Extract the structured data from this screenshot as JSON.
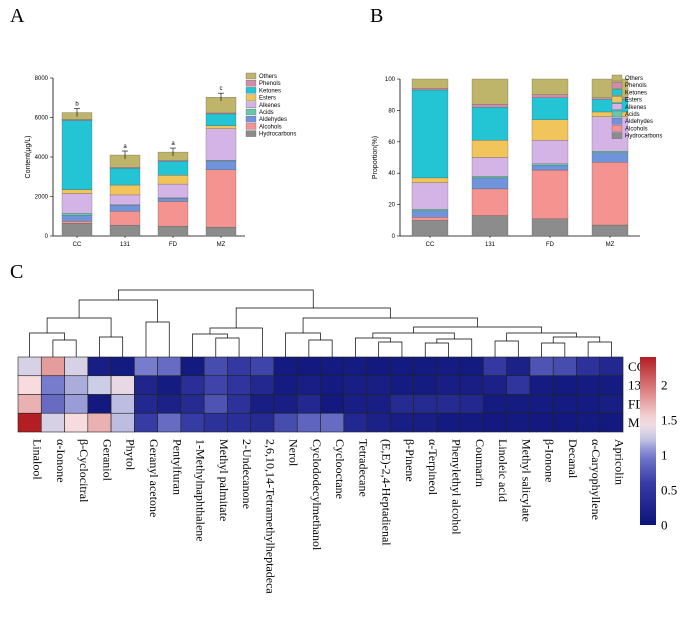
{
  "panels": {
    "a": "A",
    "b": "B",
    "c": "C"
  },
  "colors": {
    "Hydrocarbons": "#8c8c8c",
    "Alcohols": "#f4938f",
    "Aldehydes": "#6f94dc",
    "Acids": "#67c8a8",
    "Alkenes": "#d4b4e6",
    "Esters": "#f2c55c",
    "Ketones": "#23c4d4",
    "Phenols": "#d08ca8",
    "Others": "#bfb56a"
  },
  "chart_data": [
    {
      "id": "A",
      "type": "bar",
      "stacked": true,
      "ylabel": "Content(μg/L)",
      "xlabel": "",
      "ylim": [
        0,
        8000
      ],
      "yticks": [
        0,
        2000,
        4000,
        6000,
        8000
      ],
      "categories": [
        "CC",
        "131",
        "FD",
        "MZ"
      ],
      "legend_placement": "top-right",
      "significance": [
        "b",
        "a",
        "a",
        "c"
      ],
      "series": [
        {
          "name": "Hydrocarbons",
          "values": [
            650,
            550,
            500,
            450
          ]
        },
        {
          "name": "Alcohols",
          "values": [
            100,
            700,
            1250,
            2900
          ]
        },
        {
          "name": "Aldehydes",
          "values": [
            300,
            300,
            150,
            450
          ]
        },
        {
          "name": "Acids",
          "values": [
            100,
            30,
            30,
            30
          ]
        },
        {
          "name": "Alkenes",
          "values": [
            1000,
            500,
            700,
            1600
          ]
        },
        {
          "name": "Esters",
          "values": [
            200,
            500,
            450,
            150
          ]
        },
        {
          "name": "Ketones",
          "values": [
            3500,
            850,
            700,
            600
          ]
        },
        {
          "name": "Phenols",
          "values": [
            50,
            50,
            50,
            50
          ]
        },
        {
          "name": "Others",
          "values": [
            350,
            620,
            420,
            800
          ]
        }
      ]
    },
    {
      "id": "B",
      "type": "bar",
      "stacked": true,
      "ylabel": "Proportion(%)",
      "xlabel": "",
      "ylim": [
        0,
        100
      ],
      "yticks": [
        0,
        20,
        40,
        60,
        80,
        100
      ],
      "categories": [
        "CC",
        "131",
        "FD",
        "MZ"
      ],
      "legend_placement": "top-right",
      "series": [
        {
          "name": "Hydrocarbons",
          "values": [
            10,
            13,
            11,
            7
          ]
        },
        {
          "name": "Alcohols",
          "values": [
            2,
            17,
            31,
            40
          ]
        },
        {
          "name": "Aldehydes",
          "values": [
            4,
            7,
            3,
            6
          ]
        },
        {
          "name": "Acids",
          "values": [
            1,
            1,
            1,
            1
          ]
        },
        {
          "name": "Alkenes",
          "values": [
            17,
            12,
            15,
            22
          ]
        },
        {
          "name": "Esters",
          "values": [
            3,
            11,
            13,
            3
          ]
        },
        {
          "name": "Ketones",
          "values": [
            56,
            21,
            14,
            8
          ]
        },
        {
          "name": "Phenols",
          "values": [
            1,
            2,
            2,
            1
          ]
        },
        {
          "name": "Others",
          "values": [
            6,
            16,
            10,
            12
          ]
        }
      ]
    },
    {
      "id": "C",
      "type": "heatmap",
      "rows": [
        "CC",
        "131",
        "FD",
        "MZ"
      ],
      "columns": [
        "Linalool",
        "α-Ionone",
        "β-Cyclocitral",
        "Geraniol",
        "Phytol",
        "Geranyl acetone",
        "Pentylfuran",
        "1-Methylnaphthalene",
        "Methyl palmitate",
        "2-Undecanone",
        "2,6,10,14-Tetramethylheptadeca",
        "Nerol",
        "Cyclododecylmethanol",
        "Cyclooctane",
        "Tetradecane",
        "(E,E)-2,4-Heptadienal",
        "β-Pinene",
        "α-Terpineol",
        "Phenylethyl alcohol",
        "Coumarin",
        "Linoleic acid",
        "Methyl salicylate",
        "β-Ionone",
        "Decanal",
        "α-Caryophyllene",
        "Apricolin"
      ],
      "values": [
        [
          1.3,
          1.8,
          1.3,
          0.15,
          0.1,
          1.0,
          0.9,
          0.1,
          0.7,
          0.55,
          0.65,
          0.1,
          0.08,
          0.1,
          0.12,
          0.08,
          0.1,
          0.1,
          0.12,
          0.1,
          0.55,
          0.2,
          0.75,
          0.7,
          0.45,
          0.3
        ],
        [
          1.5,
          1.0,
          1.15,
          1.25,
          1.4,
          0.25,
          0.12,
          0.4,
          0.65,
          0.5,
          0.3,
          0.12,
          0.15,
          0.1,
          0.15,
          0.15,
          0.12,
          0.12,
          0.15,
          0.15,
          0.2,
          0.5,
          0.12,
          0.1,
          0.12,
          0.12
        ],
        [
          1.7,
          0.9,
          1.1,
          0.08,
          1.2,
          0.3,
          0.2,
          0.35,
          0.75,
          0.45,
          0.15,
          0.15,
          0.3,
          0.08,
          0.15,
          0.15,
          0.35,
          0.35,
          0.35,
          0.3,
          0.12,
          0.12,
          0.12,
          0.12,
          0.12,
          0.15
        ],
        [
          2.4,
          1.3,
          1.5,
          1.7,
          1.2,
          0.6,
          0.9,
          0.6,
          0.45,
          0.4,
          0.35,
          0.7,
          0.85,
          0.9,
          0.3,
          0.2,
          0.15,
          0.15,
          0.1,
          0.1,
          0.08,
          0.1,
          0.08,
          0.08,
          0.1,
          0.08
        ]
      ],
      "colorbar": {
        "min": 0,
        "max": 2.4,
        "ticks": [
          2,
          1.5,
          1,
          0.5,
          0
        ],
        "tick_labels": [
          "2",
          "1.5",
          "1",
          "0.5",
          "0"
        ]
      },
      "dendrogram": "columns"
    }
  ]
}
